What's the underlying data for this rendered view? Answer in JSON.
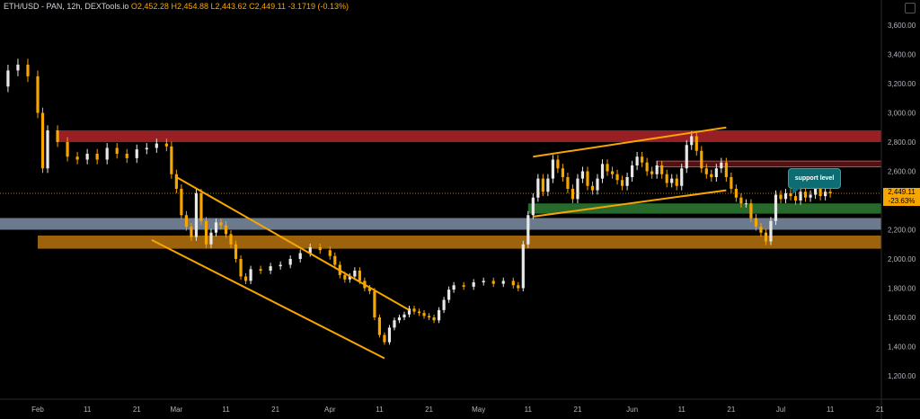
{
  "legend": {
    "symbol": "ETH/USD - PAN, 12h, DEXTools.io",
    "open": "O2,452.28",
    "high": "H2,454.88",
    "low": "L2,443.62",
    "close": "C2,449.11",
    "change": "-3.1719 (-0.13%)"
  },
  "price_tag": {
    "price": "2,449.11",
    "pct": "-23.63%"
  },
  "callout": {
    "text": "support level"
  },
  "chart_data": {
    "type": "candlestick",
    "title": "ETH/USD - PAN, 12h, DEXTools.io",
    "ylim": [
      1100,
      3700
    ],
    "y_ticks": [
      1200,
      1400,
      1600,
      1800,
      2000,
      2200,
      2400,
      2600,
      2800,
      3000,
      3200,
      3400,
      3600
    ],
    "y_tick_labels": [
      "1,200.00",
      "1,400.00",
      "1,600.00",
      "1,800.00",
      "2,000.00",
      "2,200.00",
      "2,400.00",
      "2,600.00",
      "2,800.00",
      "3,000.00",
      "3,200.00",
      "3,400.00",
      "3,600.00"
    ],
    "x_ticks": [
      {
        "date": "2021-02-01",
        "label": "Feb"
      },
      {
        "date": "2021-02-11",
        "label": "11"
      },
      {
        "date": "2021-02-21",
        "label": "21"
      },
      {
        "date": "2021-03-01",
        "label": "Mar"
      },
      {
        "date": "2021-03-11",
        "label": "11"
      },
      {
        "date": "2021-03-21",
        "label": "21"
      },
      {
        "date": "2021-04-01",
        "label": "Apr"
      },
      {
        "date": "2021-04-11",
        "label": "11"
      },
      {
        "date": "2021-04-21",
        "label": "21"
      },
      {
        "date": "2021-05-01",
        "label": "May"
      },
      {
        "date": "2021-05-11",
        "label": "11"
      },
      {
        "date": "2021-05-21",
        "label": "21"
      },
      {
        "date": "2021-06-01",
        "label": "Jun"
      },
      {
        "date": "2021-06-11",
        "label": "11"
      },
      {
        "date": "2021-06-21",
        "label": "21"
      },
      {
        "date": "2021-07-01",
        "label": "Jul"
      },
      {
        "date": "2021-07-11",
        "label": "11"
      },
      {
        "date": "2021-07-21",
        "label": "21"
      }
    ],
    "close_series": [
      [
        "2021-01-18",
        3350
      ],
      [
        "2021-01-20",
        3300
      ],
      [
        "2021-01-22",
        3280
      ],
      [
        "2021-01-24",
        3180
      ],
      [
        "2021-01-26",
        3290
      ],
      [
        "2021-01-28",
        3330
      ],
      [
        "2021-01-30",
        3250
      ],
      [
        "2021-02-01",
        3000
      ],
      [
        "2021-02-02",
        2620
      ],
      [
        "2021-02-03",
        2880
      ],
      [
        "2021-02-05",
        2800
      ],
      [
        "2021-02-07",
        2700
      ],
      [
        "2021-02-09",
        2680
      ],
      [
        "2021-02-11",
        2720
      ],
      [
        "2021-02-13",
        2680
      ],
      [
        "2021-02-15",
        2760
      ],
      [
        "2021-02-17",
        2720
      ],
      [
        "2021-02-19",
        2690
      ],
      [
        "2021-02-21",
        2750
      ],
      [
        "2021-02-23",
        2760
      ],
      [
        "2021-02-25",
        2790
      ],
      [
        "2021-02-27",
        2770
      ],
      [
        "2021-02-28",
        2580
      ],
      [
        "2021-03-01",
        2480
      ],
      [
        "2021-03-02",
        2300
      ],
      [
        "2021-03-03",
        2220
      ],
      [
        "2021-03-04",
        2150
      ],
      [
        "2021-03-05",
        2450
      ],
      [
        "2021-03-06",
        2260
      ],
      [
        "2021-03-07",
        2100
      ],
      [
        "2021-03-08",
        2180
      ],
      [
        "2021-03-09",
        2250
      ],
      [
        "2021-03-10",
        2230
      ],
      [
        "2021-03-11",
        2170
      ],
      [
        "2021-03-12",
        2100
      ],
      [
        "2021-03-13",
        2000
      ],
      [
        "2021-03-14",
        1880
      ],
      [
        "2021-03-15",
        1850
      ],
      [
        "2021-03-16",
        1930
      ],
      [
        "2021-03-18",
        1920
      ],
      [
        "2021-03-20",
        1950
      ],
      [
        "2021-03-22",
        1960
      ],
      [
        "2021-03-24",
        2000
      ],
      [
        "2021-03-26",
        2040
      ],
      [
        "2021-03-28",
        2080
      ],
      [
        "2021-03-30",
        2060
      ],
      [
        "2021-04-01",
        2020
      ],
      [
        "2021-04-02",
        1960
      ],
      [
        "2021-04-03",
        1890
      ],
      [
        "2021-04-04",
        1860
      ],
      [
        "2021-04-05",
        1880
      ],
      [
        "2021-04-06",
        1920
      ],
      [
        "2021-04-07",
        1850
      ],
      [
        "2021-04-08",
        1800
      ],
      [
        "2021-04-09",
        1780
      ],
      [
        "2021-04-10",
        1600
      ],
      [
        "2021-04-11",
        1480
      ],
      [
        "2021-04-12",
        1430
      ],
      [
        "2021-04-13",
        1530
      ],
      [
        "2021-04-14",
        1580
      ],
      [
        "2021-04-15",
        1600
      ],
      [
        "2021-04-16",
        1620
      ],
      [
        "2021-04-17",
        1660
      ],
      [
        "2021-04-18",
        1640
      ],
      [
        "2021-04-19",
        1630
      ],
      [
        "2021-04-20",
        1610
      ],
      [
        "2021-04-21",
        1600
      ],
      [
        "2021-04-22",
        1580
      ],
      [
        "2021-04-23",
        1650
      ],
      [
        "2021-04-24",
        1720
      ],
      [
        "2021-04-25",
        1790
      ],
      [
        "2021-04-26",
        1820
      ],
      [
        "2021-04-28",
        1810
      ],
      [
        "2021-04-30",
        1840
      ],
      [
        "2021-05-02",
        1850
      ],
      [
        "2021-05-04",
        1830
      ],
      [
        "2021-05-06",
        1850
      ],
      [
        "2021-05-08",
        1820
      ],
      [
        "2021-05-09",
        1800
      ],
      [
        "2021-05-10",
        2100
      ],
      [
        "2021-05-11",
        2300
      ],
      [
        "2021-05-12",
        2420
      ],
      [
        "2021-05-13",
        2550
      ],
      [
        "2021-05-14",
        2460
      ],
      [
        "2021-05-15",
        2550
      ],
      [
        "2021-05-16",
        2680
      ],
      [
        "2021-05-17",
        2620
      ],
      [
        "2021-05-18",
        2560
      ],
      [
        "2021-05-19",
        2480
      ],
      [
        "2021-05-20",
        2410
      ],
      [
        "2021-05-21",
        2550
      ],
      [
        "2021-05-22",
        2600
      ],
      [
        "2021-05-23",
        2500
      ],
      [
        "2021-05-24",
        2470
      ],
      [
        "2021-05-25",
        2550
      ],
      [
        "2021-05-26",
        2650
      ],
      [
        "2021-05-27",
        2600
      ],
      [
        "2021-05-28",
        2580
      ],
      [
        "2021-05-29",
        2540
      ],
      [
        "2021-05-30",
        2500
      ],
      [
        "2021-05-31",
        2560
      ],
      [
        "2021-06-01",
        2640
      ],
      [
        "2021-06-02",
        2700
      ],
      [
        "2021-06-03",
        2660
      ],
      [
        "2021-06-04",
        2600
      ],
      [
        "2021-06-05",
        2580
      ],
      [
        "2021-06-06",
        2640
      ],
      [
        "2021-06-07",
        2580
      ],
      [
        "2021-06-08",
        2520
      ],
      [
        "2021-06-09",
        2550
      ],
      [
        "2021-06-10",
        2500
      ],
      [
        "2021-06-11",
        2620
      ],
      [
        "2021-06-12",
        2780
      ],
      [
        "2021-06-13",
        2840
      ],
      [
        "2021-06-14",
        2740
      ],
      [
        "2021-06-15",
        2620
      ],
      [
        "2021-06-16",
        2580
      ],
      [
        "2021-06-17",
        2560
      ],
      [
        "2021-06-18",
        2620
      ],
      [
        "2021-06-19",
        2660
      ],
      [
        "2021-06-20",
        2560
      ],
      [
        "2021-06-21",
        2480
      ],
      [
        "2021-06-22",
        2420
      ],
      [
        "2021-06-23",
        2380
      ],
      [
        "2021-06-24",
        2380
      ],
      [
        "2021-06-25",
        2280
      ],
      [
        "2021-06-26",
        2220
      ],
      [
        "2021-06-27",
        2180
      ],
      [
        "2021-06-28",
        2120
      ],
      [
        "2021-06-29",
        2260
      ],
      [
        "2021-06-30",
        2440
      ],
      [
        "2021-07-01",
        2410
      ],
      [
        "2021-07-02",
        2450
      ],
      [
        "2021-07-03",
        2430
      ],
      [
        "2021-07-04",
        2400
      ],
      [
        "2021-07-05",
        2460
      ],
      [
        "2021-07-06",
        2420
      ],
      [
        "2021-07-07",
        2440
      ],
      [
        "2021-07-08",
        2490
      ],
      [
        "2021-07-09",
        2430
      ],
      [
        "2021-07-10",
        2460
      ],
      [
        "2021-07-11",
        2449
      ]
    ],
    "last_price": 2449.11,
    "zones": [
      {
        "name": "resistance-zone",
        "start": "2021-02-05",
        "end": "2021-07-24",
        "top": 2880,
        "bottom": 2800,
        "color": "#b3262c"
      },
      {
        "name": "upper-zone",
        "start": "2021-06-06",
        "end": "2021-07-24",
        "top": 2670,
        "bottom": 2630,
        "color": "#8a1c22"
      },
      {
        "name": "support-zone",
        "start": "2021-05-11",
        "end": "2021-07-22",
        "top": 2380,
        "bottom": 2310,
        "color": "#2e7d32"
      },
      {
        "name": "blue-zone",
        "start": "2021-01-16",
        "end": "2021-07-29",
        "top": 2280,
        "bottom": 2200,
        "color": "#7f8fa6"
      },
      {
        "name": "orange-zone",
        "start": "2021-02-01",
        "end": "2021-07-29",
        "top": 2160,
        "bottom": 2070,
        "color": "#b8730e"
      }
    ],
    "trendlines": [
      {
        "name": "channel-upper",
        "from": [
          "2021-03-01",
          2560
        ],
        "to": [
          "2021-04-17",
          1650
        ]
      },
      {
        "name": "channel-lower",
        "from": [
          "2021-02-24",
          2130
        ],
        "to": [
          "2021-04-12",
          1320
        ]
      },
      {
        "name": "wedge-upper",
        "from": [
          "2021-05-12",
          2700
        ],
        "to": [
          "2021-06-20",
          2900
        ]
      },
      {
        "name": "wedge-lower",
        "from": [
          "2021-05-12",
          2290
        ],
        "to": [
          "2021-06-20",
          2470
        ]
      }
    ]
  }
}
